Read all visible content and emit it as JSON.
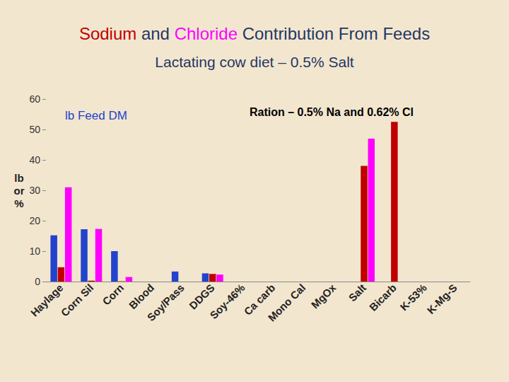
{
  "chart_data": {
    "type": "bar",
    "title": "Sodium and Chloride Contribution From Feeds",
    "subtitle": "Lactating cow diet – 0.5% Salt",
    "annotation": [
      "Ration – ",
      "0.5% Na",
      " and ",
      "0.62% Cl"
    ],
    "y_label": "lb or %",
    "categories": [
      "Haylage",
      "Corn Sil",
      "Corn",
      "Blood",
      "Soy/Pass",
      "DDGS",
      "Soy-46%",
      "Ca carb",
      "Mono Cal",
      "MgOx",
      "Salt",
      "Bicarb",
      "K-53%",
      "K-Mg-S"
    ],
    "series": [
      {
        "name": "lb Feed DM",
        "color": "#2244cc",
        "values": [
          15.2,
          17.2,
          10,
          0,
          3.3,
          2.7,
          0,
          0,
          0,
          0,
          0,
          0,
          0,
          0
        ]
      },
      {
        "name": "Sodium",
        "color": "#c00000",
        "values": [
          4.7,
          0.3,
          0.1,
          0,
          0,
          2.5,
          0,
          0,
          0,
          0,
          38,
          52.5,
          0,
          0
        ]
      },
      {
        "name": "Chloride",
        "color": "#ff00ff",
        "values": [
          31,
          17.3,
          1.5,
          0,
          0,
          2.3,
          0,
          0,
          0,
          0,
          47,
          0,
          0,
          0
        ]
      }
    ],
    "ylim": [
      0,
      60
    ],
    "yticks": [
      0,
      10,
      20,
      30,
      40,
      50,
      60
    ],
    "grid": false,
    "legend": "upper left"
  }
}
